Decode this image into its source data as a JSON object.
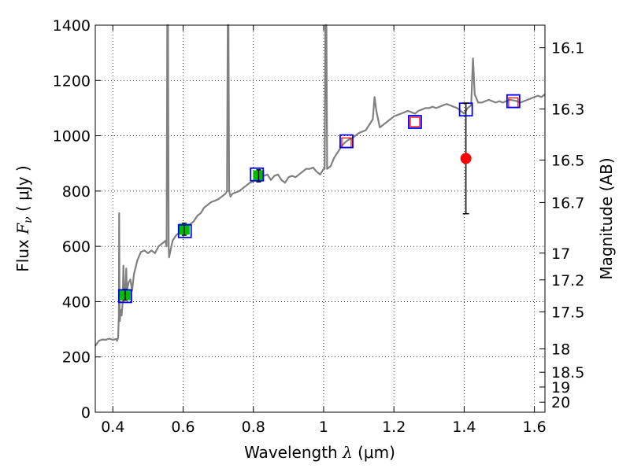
{
  "chart_data": {
    "type": "line",
    "xlabel_text": "Wavelength",
    "xlabel_symbol": "λ",
    "xlabel_unit": "(μm)",
    "ylabel_text": "Flux",
    "ylabel_symbol": "F",
    "ylabel_subscript": "ν",
    "ylabel_unit": "( μJy )",
    "y2label": "Magnitude (AB)",
    "xlim": [
      0.35,
      1.63
    ],
    "ylim": [
      0,
      1400
    ],
    "xticks": [
      {
        "value": 0.4,
        "label": "0.4"
      },
      {
        "value": 0.6,
        "label": "0.6"
      },
      {
        "value": 0.8,
        "label": "0.8"
      },
      {
        "value": 1.0,
        "label": "1"
      },
      {
        "value": 1.2,
        "label": "1.2"
      },
      {
        "value": 1.4,
        "label": "1.4"
      },
      {
        "value": 1.6,
        "label": "1.6"
      }
    ],
    "yticks": [
      {
        "value": 0,
        "label": "0"
      },
      {
        "value": 200,
        "label": "200"
      },
      {
        "value": 400,
        "label": "400"
      },
      {
        "value": 600,
        "label": "600"
      },
      {
        "value": 800,
        "label": "800"
      },
      {
        "value": 1000,
        "label": "1000"
      },
      {
        "value": 1200,
        "label": "1200"
      },
      {
        "value": 1400,
        "label": "1400"
      }
    ],
    "y2ticks": [
      {
        "mag": 16.1,
        "label": "16.1"
      },
      {
        "mag": 16.3,
        "label": "16.3"
      },
      {
        "mag": 16.5,
        "label": "16.5"
      },
      {
        "mag": 16.7,
        "label": "16.7"
      },
      {
        "mag": 17,
        "label": "17"
      },
      {
        "mag": 17.2,
        "label": "17.2"
      },
      {
        "mag": 17.5,
        "label": "17.5"
      },
      {
        "mag": 18,
        "label": "18"
      },
      {
        "mag": 18.5,
        "label": "18.5"
      },
      {
        "mag": 19,
        "label": "19"
      },
      {
        "mag": 20,
        "label": "20"
      }
    ],
    "grid": true,
    "colors": {
      "spectrum": "#808080",
      "photometry_fill": "#00bb00",
      "model_box": "#0000ff",
      "nir_box": "#ff0000",
      "red_point": "#ff0000"
    },
    "spectrum": [
      [
        0.35,
        240
      ],
      [
        0.36,
        258
      ],
      [
        0.37,
        263
      ],
      [
        0.38,
        262
      ],
      [
        0.39,
        266
      ],
      [
        0.4,
        262
      ],
      [
        0.41,
        265
      ],
      [
        0.412,
        258
      ],
      [
        0.415,
        270
      ],
      [
        0.417,
        350
      ],
      [
        0.418,
        720
      ],
      [
        0.419,
        400
      ],
      [
        0.42,
        330
      ],
      [
        0.422,
        370
      ],
      [
        0.425,
        350
      ],
      [
        0.428,
        400
      ],
      [
        0.43,
        530
      ],
      [
        0.432,
        430
      ],
      [
        0.435,
        420
      ],
      [
        0.438,
        520
      ],
      [
        0.44,
        440
      ],
      [
        0.445,
        470
      ],
      [
        0.45,
        480
      ],
      [
        0.455,
        440
      ],
      [
        0.46,
        500
      ],
      [
        0.47,
        550
      ],
      [
        0.48,
        580
      ],
      [
        0.49,
        585
      ],
      [
        0.5,
        575
      ],
      [
        0.51,
        585
      ],
      [
        0.52,
        575
      ],
      [
        0.53,
        600
      ],
      [
        0.54,
        610
      ],
      [
        0.55,
        620
      ],
      [
        0.553,
        600
      ],
      [
        0.555,
        1400
      ],
      [
        0.557,
        1400
      ],
      [
        0.559,
        600
      ],
      [
        0.56,
        560
      ],
      [
        0.565,
        590
      ],
      [
        0.57,
        620
      ],
      [
        0.58,
        640
      ],
      [
        0.59,
        650
      ],
      [
        0.6,
        662
      ],
      [
        0.61,
        670
      ],
      [
        0.62,
        680
      ],
      [
        0.63,
        690
      ],
      [
        0.64,
        710
      ],
      [
        0.65,
        720
      ],
      [
        0.66,
        740
      ],
      [
        0.67,
        750
      ],
      [
        0.68,
        760
      ],
      [
        0.69,
        765
      ],
      [
        0.7,
        770
      ],
      [
        0.71,
        780
      ],
      [
        0.72,
        790
      ],
      [
        0.725,
        800
      ],
      [
        0.727,
        1400
      ],
      [
        0.729,
        1400
      ],
      [
        0.731,
        800
      ],
      [
        0.735,
        780
      ],
      [
        0.74,
        790
      ],
      [
        0.75,
        795
      ],
      [
        0.76,
        800
      ],
      [
        0.77,
        810
      ],
      [
        0.78,
        820
      ],
      [
        0.79,
        830
      ],
      [
        0.8,
        835
      ],
      [
        0.81,
        845
      ],
      [
        0.82,
        850
      ],
      [
        0.83,
        855
      ],
      [
        0.84,
        860
      ],
      [
        0.85,
        840
      ],
      [
        0.86,
        855
      ],
      [
        0.87,
        860
      ],
      [
        0.88,
        840
      ],
      [
        0.89,
        830
      ],
      [
        0.9,
        850
      ],
      [
        0.91,
        855
      ],
      [
        0.92,
        850
      ],
      [
        0.93,
        860
      ],
      [
        0.94,
        870
      ],
      [
        0.95,
        880
      ],
      [
        0.96,
        880
      ],
      [
        0.97,
        885
      ],
      [
        0.98,
        870
      ],
      [
        0.99,
        860
      ],
      [
        1.0,
        880
      ],
      [
        1.003,
        880
      ],
      [
        1.005,
        1400
      ],
      [
        1.008,
        1400
      ],
      [
        1.01,
        880
      ],
      [
        1.02,
        890
      ],
      [
        1.03,
        920
      ],
      [
        1.04,
        940
      ],
      [
        1.05,
        960
      ],
      [
        1.06,
        975
      ],
      [
        1.07,
        985
      ],
      [
        1.08,
        990
      ],
      [
        1.09,
        1000
      ],
      [
        1.1,
        1010
      ],
      [
        1.11,
        1015
      ],
      [
        1.12,
        1020
      ],
      [
        1.13,
        1040
      ],
      [
        1.14,
        1060
      ],
      [
        1.145,
        1140
      ],
      [
        1.15,
        1090
      ],
      [
        1.16,
        1030
      ],
      [
        1.17,
        1040
      ],
      [
        1.18,
        1050
      ],
      [
        1.19,
        1060
      ],
      [
        1.2,
        1070
      ],
      [
        1.21,
        1075
      ],
      [
        1.22,
        1080
      ],
      [
        1.23,
        1085
      ],
      [
        1.24,
        1090
      ],
      [
        1.25,
        1085
      ],
      [
        1.26,
        1080
      ],
      [
        1.27,
        1090
      ],
      [
        1.28,
        1095
      ],
      [
        1.29,
        1100
      ],
      [
        1.3,
        1100
      ],
      [
        1.31,
        1105
      ],
      [
        1.32,
        1100
      ],
      [
        1.33,
        1105
      ],
      [
        1.34,
        1110
      ],
      [
        1.35,
        1115
      ],
      [
        1.36,
        1110
      ],
      [
        1.37,
        1105
      ],
      [
        1.38,
        1100
      ],
      [
        1.39,
        1090
      ],
      [
        1.4,
        1080
      ],
      [
        1.41,
        1100
      ],
      [
        1.42,
        1110
      ],
      [
        1.425,
        1280
      ],
      [
        1.43,
        1150
      ],
      [
        1.44,
        1120
      ],
      [
        1.45,
        1120
      ],
      [
        1.46,
        1125
      ],
      [
        1.47,
        1130
      ],
      [
        1.48,
        1125
      ],
      [
        1.49,
        1120
      ],
      [
        1.5,
        1125
      ],
      [
        1.51,
        1120
      ],
      [
        1.52,
        1125
      ],
      [
        1.53,
        1130
      ],
      [
        1.54,
        1128
      ],
      [
        1.55,
        1125
      ],
      [
        1.56,
        1120
      ],
      [
        1.57,
        1125
      ],
      [
        1.58,
        1130
      ],
      [
        1.59,
        1135
      ],
      [
        1.6,
        1140
      ],
      [
        1.61,
        1145
      ],
      [
        1.62,
        1140
      ],
      [
        1.63,
        1150
      ]
    ],
    "photometry": [
      {
        "x": 0.435,
        "y": 425,
        "err": 20
      },
      {
        "x": 0.603,
        "y": 662,
        "err": 22
      },
      {
        "x": 0.815,
        "y": 855,
        "err": 22
      }
    ],
    "model_boxes": [
      {
        "x": 0.435,
        "y": 420
      },
      {
        "x": 0.605,
        "y": 655
      },
      {
        "x": 0.81,
        "y": 860
      },
      {
        "x": 1.065,
        "y": 980
      },
      {
        "x": 1.26,
        "y": 1050
      },
      {
        "x": 1.405,
        "y": 1095
      },
      {
        "x": 1.54,
        "y": 1125
      }
    ],
    "nir_boxes": [
      {
        "x": 1.065,
        "y": 975
      },
      {
        "x": 1.26,
        "y": 1050
      },
      {
        "x": 1.54,
        "y": 1120
      }
    ],
    "red_point": {
      "x": 1.405,
      "y": 918,
      "err_low": 200,
      "err_high": 200
    }
  }
}
